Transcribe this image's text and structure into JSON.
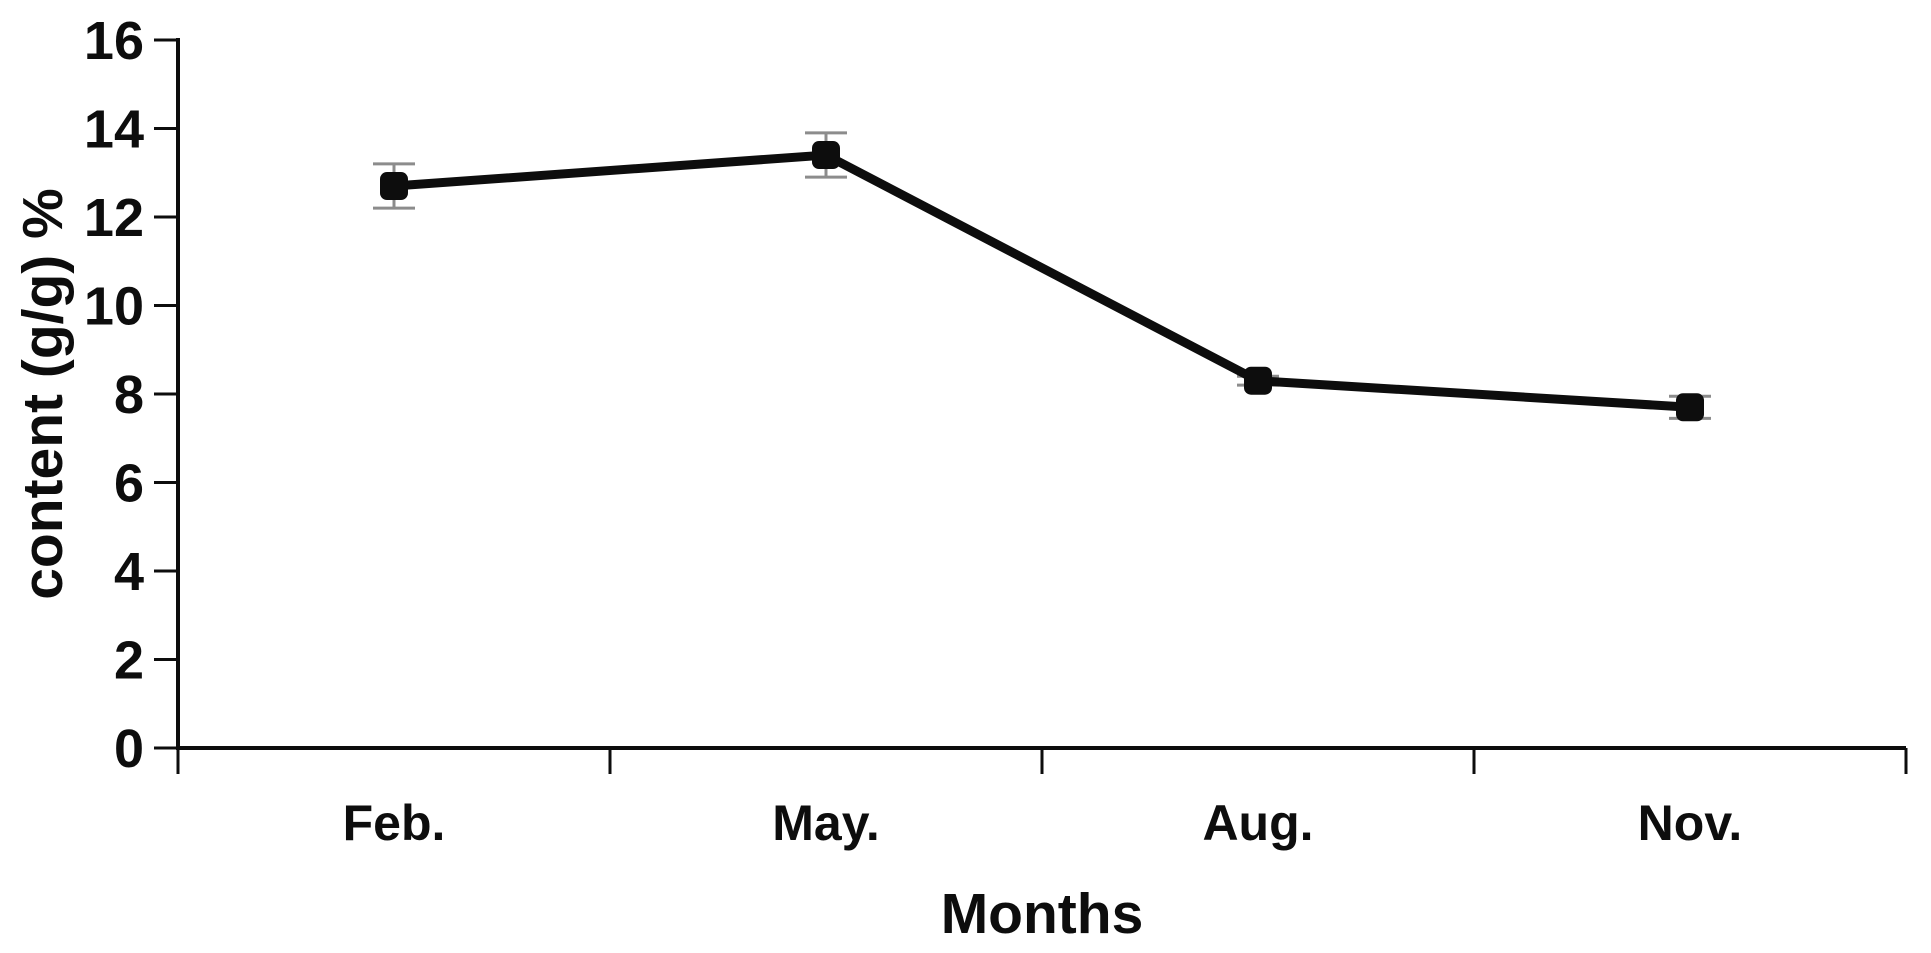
{
  "chart_data": {
    "type": "line",
    "categories": [
      "Feb.",
      "May.",
      "Aug.",
      "Nov."
    ],
    "values": [
      12.7,
      13.4,
      8.3,
      7.7
    ],
    "error_bars": [
      0.5,
      0.5,
      0.1,
      0.25
    ],
    "title": "",
    "xlabel": "Months",
    "ylabel": "content (g/g) %",
    "ylim": [
      0,
      16
    ],
    "ytick_step": 2,
    "yticks": [
      0,
      2,
      4,
      6,
      8,
      10,
      12,
      14,
      16
    ],
    "grid": false,
    "legend": null,
    "colors": {
      "series": "#0d0d0d",
      "axis": "#0d0d0d",
      "error_bar": "#8c8c8c",
      "background": "#ffffff"
    }
  }
}
